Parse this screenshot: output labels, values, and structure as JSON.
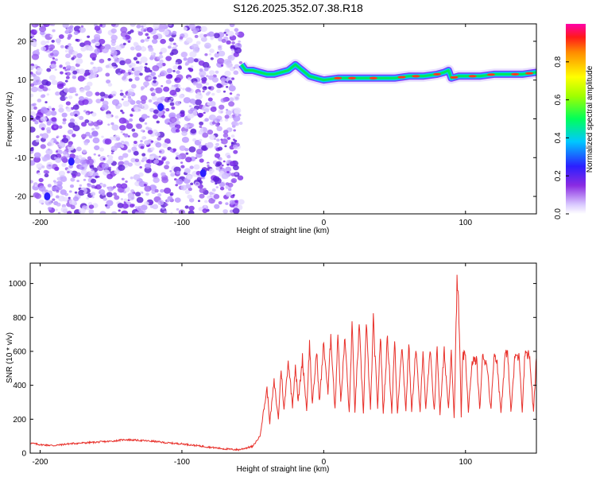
{
  "title": "S126.2025.352.07.38.R18",
  "chart_data": [
    {
      "type": "heatmap",
      "xlabel": "Height of straight line (km)",
      "ylabel": "Frequency (Hz)",
      "xlim": [
        -207,
        150
      ],
      "ylim": [
        -24.5,
        24.5
      ],
      "xticks": [
        -200,
        -100,
        0,
        100
      ],
      "yticks": [
        -20,
        -10,
        0,
        10,
        20
      ],
      "noise_region": {
        "x": [
          -207,
          -58
        ],
        "y": [
          -24.5,
          24.5
        ]
      },
      "ridge": {
        "x": [
          -58,
          -55,
          -50,
          -45,
          -40,
          -35,
          -30,
          -25,
          -20,
          -15,
          -10,
          -5,
          0,
          10,
          20,
          30,
          40,
          50,
          60,
          70,
          80,
          85,
          88,
          90,
          95,
          100,
          110,
          120,
          130,
          140,
          150
        ],
        "freq": [
          14,
          12.5,
          12.5,
          12,
          11.5,
          11.5,
          12,
          12.5,
          14,
          12.5,
          11,
          10.5,
          10,
          10.5,
          10.5,
          10.5,
          10.5,
          10.5,
          11,
          11,
          11.5,
          12,
          12.5,
          10.5,
          11,
          11,
          11,
          11.5,
          11.5,
          11.5,
          12
        ]
      },
      "colorbar": {
        "label": "Normalized spectral amplitude",
        "ticks": [
          0.0,
          0.2,
          0.4,
          0.6,
          0.8
        ],
        "tick_labels": [
          "0.0",
          "0.2",
          "0.4",
          "0.6",
          "0.8"
        ],
        "range": [
          0,
          1
        ]
      }
    },
    {
      "type": "line",
      "xlabel": "Height of straight line (km)",
      "ylabel": "SNR (10 * v/v)",
      "xlim": [
        -207,
        150
      ],
      "ylim": [
        0,
        1120
      ],
      "xticks": [
        -200,
        -100,
        0,
        100
      ],
      "yticks": [
        0,
        200,
        400,
        600,
        800,
        1000
      ],
      "series": [
        {
          "color": "#e8302a",
          "x": [
            -207,
            -200,
            -190,
            -180,
            -170,
            -160,
            -150,
            -140,
            -130,
            -120,
            -110,
            -100,
            -90,
            -80,
            -70,
            -60,
            -50,
            -45,
            -40,
            -38,
            -35,
            -32,
            -30,
            -28,
            -25,
            -22,
            -20,
            -18,
            -15,
            -12,
            -10,
            -8,
            -5,
            -3,
            0,
            3,
            5,
            8,
            10,
            12,
            15,
            18,
            20,
            22,
            25,
            28,
            30,
            33,
            35,
            38,
            40,
            42,
            45,
            48,
            50,
            52,
            55,
            58,
            60,
            62,
            65,
            68,
            70,
            72,
            75,
            78,
            80,
            82,
            85,
            88,
            90,
            92,
            94,
            95,
            96,
            97,
            98,
            100,
            102,
            105,
            108,
            110,
            112,
            115,
            118,
            120,
            122,
            125,
            128,
            130,
            132,
            135,
            138,
            140,
            142,
            145,
            148,
            150
          ],
          "y": [
            60,
            50,
            45,
            55,
            60,
            65,
            70,
            80,
            75,
            70,
            60,
            55,
            45,
            35,
            25,
            20,
            40,
            100,
            380,
            180,
            420,
            200,
            500,
            250,
            550,
            280,
            520,
            300,
            560,
            250,
            650,
            280,
            600,
            300,
            650,
            350,
            700,
            250,
            720,
            300,
            680,
            230,
            760,
            250,
            740,
            240,
            760,
            250,
            780,
            260,
            700,
            230,
            690,
            240,
            660,
            230,
            640,
            250,
            650,
            240,
            620,
            230,
            630,
            250,
            600,
            250,
            620,
            230,
            600,
            260,
            620,
            200,
            1000,
            900,
            600,
            200,
            580,
            560,
            250,
            550,
            540,
            250,
            560,
            540,
            250,
            580,
            560,
            240,
            590,
            570,
            240,
            580,
            560,
            250,
            600,
            580,
            240,
            560
          ]
        }
      ]
    }
  ]
}
